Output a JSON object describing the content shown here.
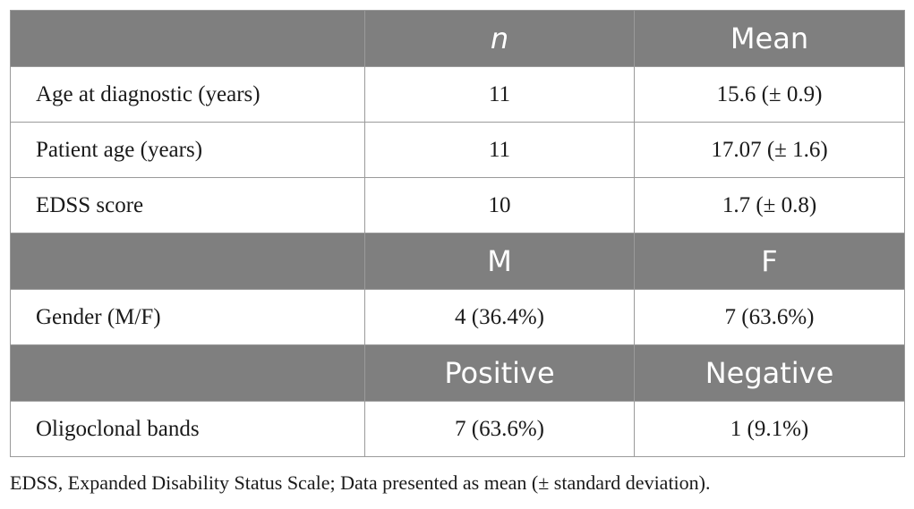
{
  "table": {
    "sections": [
      {
        "header": [
          "",
          "n",
          "Mean"
        ],
        "rows": [
          [
            "Age at diagnostic (years)",
            "11",
            "15.6 (± 0.9)"
          ],
          [
            "Patient age (years)",
            "11",
            "17.07 (± 1.6)"
          ],
          [
            "EDSS score",
            "10",
            "1.7 (± 0.8)"
          ]
        ]
      },
      {
        "header": [
          "",
          "M",
          "F"
        ],
        "rows": [
          [
            "Gender (M/F)",
            "4 (36.4%)",
            "7 (63.6%)"
          ]
        ]
      },
      {
        "header": [
          "",
          "Positive",
          "Negative"
        ],
        "rows": [
          [
            "Oligoclonal bands",
            "7 (63.6%)",
            "1 (9.1%)"
          ]
        ]
      }
    ],
    "colors": {
      "header_bg": "#7f7f7f",
      "header_text": "#ffffff",
      "border": "#9a9a9a"
    }
  },
  "footnote": "EDSS, Expanded Disability Status Scale; Data presented as mean (± standard deviation)."
}
